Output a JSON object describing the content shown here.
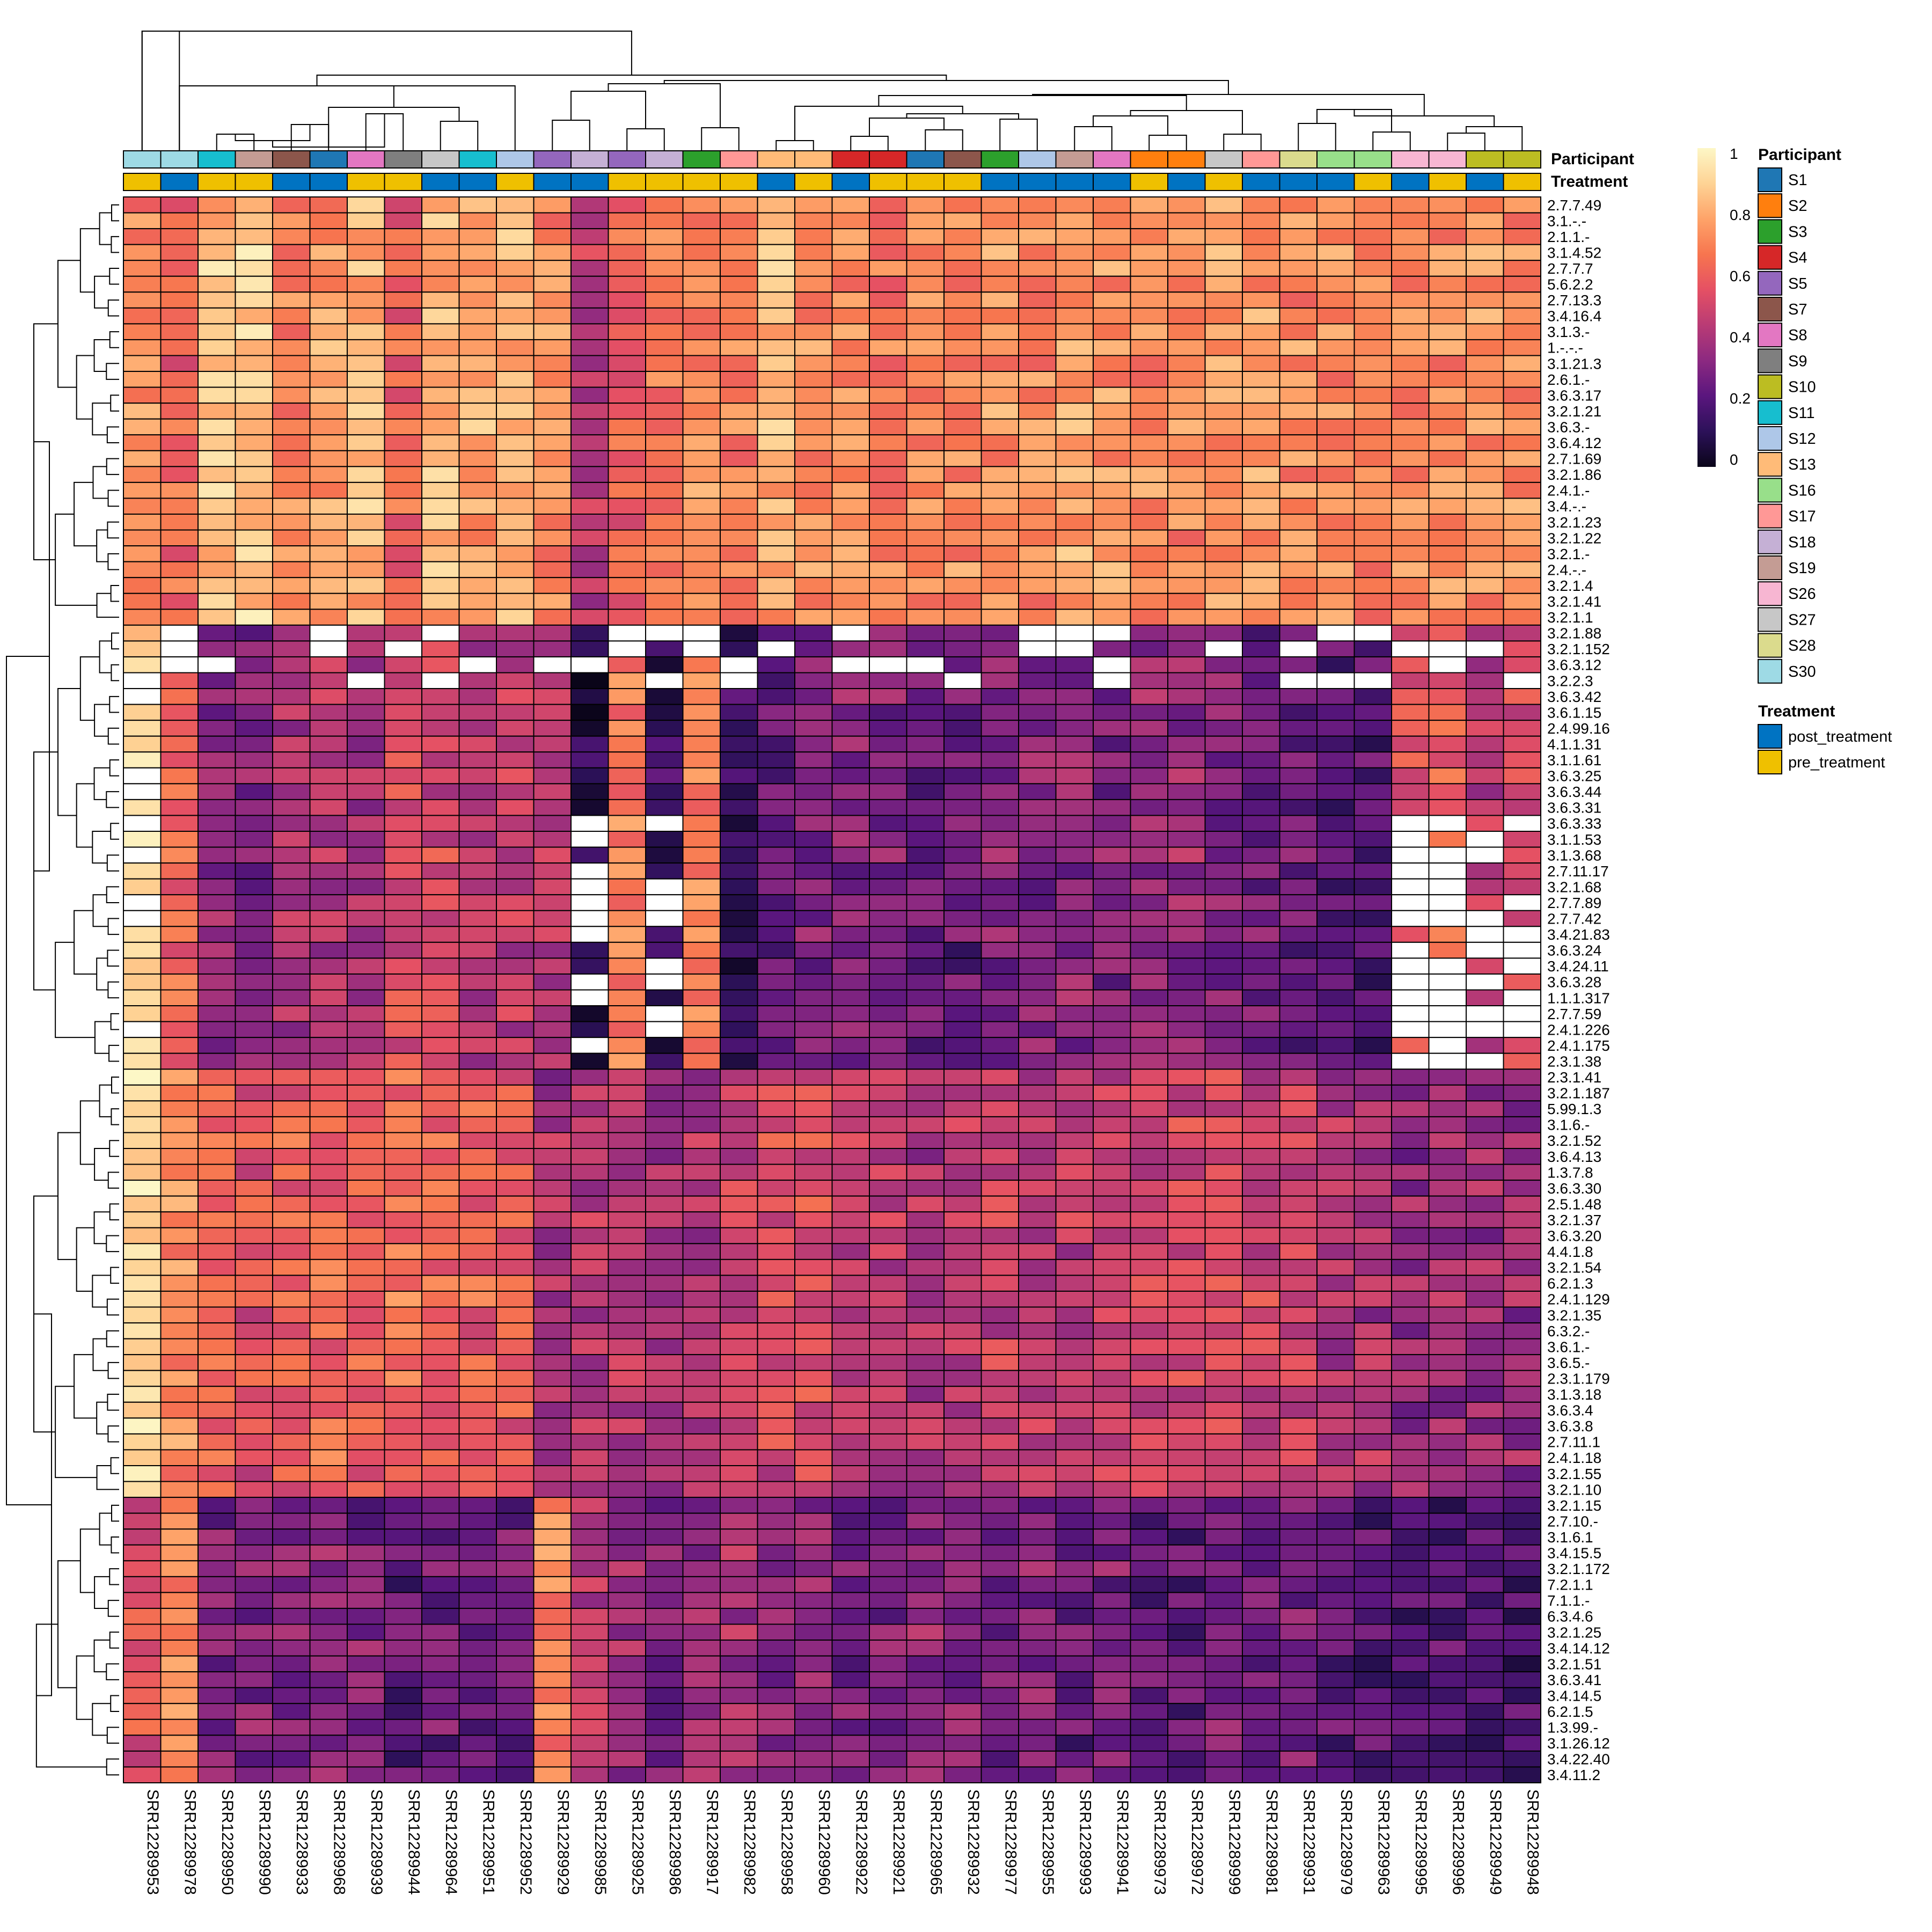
{
  "chart_data": {
    "type": "heatmap",
    "title": "",
    "xlabel": "",
    "ylabel": "",
    "value_range": [
      0,
      1
    ],
    "colorbar": {
      "ticks": [
        "0",
        "0.2",
        "0.4",
        "0.6",
        "0.8",
        "1"
      ],
      "tick_values": [
        0,
        0.2,
        0.4,
        0.6,
        0.8,
        1
      ],
      "colors": [
        "#0a0519",
        "#2c1159",
        "#5a167e",
        "#8c2981",
        "#b93b75",
        "#e55064",
        "#f7754f",
        "#fea369",
        "#fed395",
        "#fdf7c6"
      ]
    },
    "samples": [
      "SRR12289953",
      "SRR12289978",
      "SRR12289950",
      "SRR12289990",
      "SRR12289933",
      "SRR12289968",
      "SRR12289939",
      "SRR12289944",
      "SRR12289964",
      "SRR12289951",
      "SRR12289952",
      "SRR12289929",
      "SRR12289985",
      "SRR12289925",
      "SRR12289986",
      "SRR12289917",
      "SRR12289982",
      "SRR12289958",
      "SRR12289960",
      "SRR12289922",
      "SRR12289921",
      "SRR12289965",
      "SRR12289932",
      "SRR12289977",
      "SRR12289955",
      "SRR12289993",
      "SRR12289941",
      "SRR12289973",
      "SRR12289972",
      "SRR12289999",
      "SRR12289981",
      "SRR12289931",
      "SRR12289979",
      "SRR12289963",
      "SRR12289995",
      "SRR12289996",
      "SRR12289949",
      "SRR12289948"
    ],
    "participant": [
      "S30",
      "S30",
      "S11",
      "S19",
      "S7",
      "S1",
      "S8",
      "S9",
      "S27",
      "S11",
      "S12",
      "S5",
      "S18",
      "S5",
      "S18",
      "S3",
      "S17",
      "S13",
      "S13",
      "S4",
      "S4",
      "S1",
      "S7",
      "S3",
      "S12",
      "S19",
      "S8",
      "S2",
      "S2",
      "S27",
      "S17",
      "S28",
      "S16",
      "S16",
      "S26",
      "S26",
      "S10",
      "S10"
    ],
    "treatment": [
      "pre_treatment",
      "post_treatment",
      "pre_treatment",
      "pre_treatment",
      "post_treatment",
      "post_treatment",
      "pre_treatment",
      "pre_treatment",
      "post_treatment",
      "post_treatment",
      "pre_treatment",
      "post_treatment",
      "post_treatment",
      "pre_treatment",
      "pre_treatment",
      "pre_treatment",
      "pre_treatment",
      "post_treatment",
      "pre_treatment",
      "post_treatment",
      "pre_treatment",
      "pre_treatment",
      "pre_treatment",
      "post_treatment",
      "post_treatment",
      "post_treatment",
      "post_treatment",
      "pre_treatment",
      "post_treatment",
      "pre_treatment",
      "post_treatment",
      "post_treatment",
      "post_treatment",
      "pre_treatment",
      "post_treatment",
      "pre_treatment",
      "post_treatment",
      "pre_treatment"
    ],
    "annotation_labels": {
      "participant": "Participant",
      "treatment": "Treatment"
    },
    "participant_legend": [
      {
        "name": "S1",
        "color": "#1f77b4"
      },
      {
        "name": "S2",
        "color": "#ff7f0e"
      },
      {
        "name": "S3",
        "color": "#2ca02c"
      },
      {
        "name": "S4",
        "color": "#d62728"
      },
      {
        "name": "S5",
        "color": "#9467bd"
      },
      {
        "name": "S7",
        "color": "#8c564b"
      },
      {
        "name": "S8",
        "color": "#e377c2"
      },
      {
        "name": "S9",
        "color": "#7f7f7f"
      },
      {
        "name": "S10",
        "color": "#bcbd22"
      },
      {
        "name": "S11",
        "color": "#17becf"
      },
      {
        "name": "S12",
        "color": "#aec7e8"
      },
      {
        "name": "S13",
        "color": "#ffbb78"
      },
      {
        "name": "S16",
        "color": "#98df8a"
      },
      {
        "name": "S17",
        "color": "#ff9896"
      },
      {
        "name": "S18",
        "color": "#c5b0d5"
      },
      {
        "name": "S19",
        "color": "#c49c94"
      },
      {
        "name": "S26",
        "color": "#f7b6d2"
      },
      {
        "name": "S27",
        "color": "#c7c7c7"
      },
      {
        "name": "S28",
        "color": "#dbdb8d"
      },
      {
        "name": "S30",
        "color": "#9edae5"
      }
    ],
    "treatment_legend": [
      {
        "name": "post_treatment",
        "color": "#0073c2"
      },
      {
        "name": "pre_treatment",
        "color": "#efc000"
      }
    ],
    "row_groups": [
      {
        "rows": [
          "2.7.7.49",
          "3.1.-.-",
          "2.1.1.-",
          "3.1.4.52",
          "2.7.7.7",
          "5.6.2.2",
          "2.7.13.3",
          "3.4.16.4",
          "3.1.3.-",
          "1.-.-.-",
          "3.1.21.3",
          "2.6.1.-",
          "3.6.3.17",
          "3.2.1.21",
          "3.6.3.-",
          "3.6.4.12",
          "2.7.1.69",
          "3.2.1.86",
          "2.4.1.-",
          "3.4.-.-",
          "3.2.1.23",
          "3.2.1.22",
          "3.2.1.-",
          "2.4.-.-",
          "3.2.1.4",
          "3.2.1.41",
          "3.2.1.1"
        ],
        "profile": [
          0.72,
          0.62,
          0.85,
          0.88,
          0.7,
          0.75,
          0.82,
          0.6,
          0.82,
          0.78,
          0.8,
          0.72,
          0.45,
          0.62,
          0.68,
          0.72,
          0.68,
          0.8,
          0.72,
          0.72,
          0.68,
          0.72,
          0.72,
          0.74,
          0.72,
          0.78,
          0.74,
          0.72,
          0.72,
          0.76,
          0.76,
          0.72,
          0.72,
          0.7,
          0.7,
          0.72,
          0.74,
          0.72
        ]
      },
      {
        "rows": [
          "3.2.1.88",
          "3.2.1.152",
          "3.6.3.12",
          "3.2.2.3",
          "3.6.3.42",
          "3.6.1.15",
          "2.4.99.16",
          "4.1.1.31",
          "3.1.1.61",
          "3.6.3.25",
          "3.6.3.44",
          "3.6.3.31",
          "3.6.3.33",
          "3.1.1.53",
          "3.1.3.68",
          "2.7.11.17",
          "3.2.1.68",
          "2.7.7.89",
          "2.7.7.42",
          "3.4.21.83",
          "3.6.3.24",
          "3.4.24.11",
          "3.6.3.28",
          "1.1.1.317",
          "2.7.7.59",
          "2.4.1.226",
          "2.4.1.175",
          "2.3.1.38"
        ],
        "profile": [
          0.95,
          0.62,
          0.35,
          0.32,
          0.42,
          0.42,
          0.38,
          0.55,
          0.5,
          0.42,
          0.45,
          0.42,
          0.08,
          0.7,
          0.14,
          0.7,
          0.14,
          0.24,
          0.3,
          0.32,
          0.32,
          0.25,
          0.25,
          0.32,
          0.32,
          0.34,
          0.3,
          0.34,
          0.36,
          0.32,
          0.28,
          0.26,
          0.22,
          0.2,
          0.55,
          0.6,
          0.45,
          0.55
        ]
      },
      {
        "rows": [
          "2.3.1.41",
          "3.2.1.187",
          "5.99.1.3",
          "3.1.6.-",
          "3.2.1.52",
          "3.6.4.13",
          "1.3.7.8",
          "3.6.3.30",
          "2.5.1.48",
          "3.2.1.37",
          "3.6.3.20",
          "4.4.1.8",
          "3.2.1.54",
          "6.2.1.3",
          "2.4.1.129",
          "3.2.1.35",
          "6.3.2.-",
          "3.6.1.-",
          "3.6.5.-",
          "2.3.1.179",
          "3.1.3.18",
          "3.6.3.4",
          "3.6.3.8",
          "2.7.11.1",
          "2.4.1.18",
          "3.2.1.55",
          "3.2.1.10"
        ],
        "profile": [
          0.95,
          0.72,
          0.6,
          0.55,
          0.6,
          0.62,
          0.6,
          0.65,
          0.62,
          0.6,
          0.58,
          0.4,
          0.42,
          0.42,
          0.4,
          0.42,
          0.48,
          0.52,
          0.55,
          0.45,
          0.45,
          0.42,
          0.45,
          0.48,
          0.45,
          0.45,
          0.48,
          0.5,
          0.5,
          0.52,
          0.5,
          0.5,
          0.42,
          0.4,
          0.36,
          0.38,
          0.38,
          0.36
        ]
      },
      {
        "rows": [
          "3.2.1.15",
          "2.7.10.-",
          "3.1.6.1",
          "3.4.15.5",
          "3.2.1.172",
          "7.2.1.1",
          "7.1.1.-",
          "6.3.4.6",
          "3.2.1.25",
          "3.4.14.12",
          "3.2.1.51",
          "3.6.3.41",
          "3.4.14.5",
          "6.2.1.5",
          "1.3.99.-",
          "3.1.26.12",
          "3.4.22.40",
          "3.4.11.2"
        ],
        "profile": [
          0.55,
          0.72,
          0.3,
          0.3,
          0.32,
          0.34,
          0.3,
          0.22,
          0.26,
          0.25,
          0.28,
          0.7,
          0.45,
          0.38,
          0.3,
          0.35,
          0.4,
          0.35,
          0.36,
          0.28,
          0.28,
          0.35,
          0.32,
          0.28,
          0.32,
          0.25,
          0.3,
          0.25,
          0.22,
          0.3,
          0.28,
          0.3,
          0.24,
          0.22,
          0.2,
          0.2,
          0.18,
          0.18
        ]
      }
    ]
  }
}
